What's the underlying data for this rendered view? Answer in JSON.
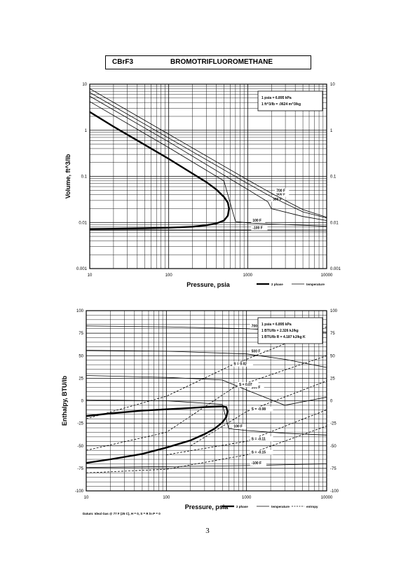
{
  "header": {
    "formula": "CBrF3",
    "name": "BROMOTRIFLUOROMETHANE"
  },
  "page_number": "3",
  "chart_data": [
    {
      "type": "line",
      "xlabel": "Pressure, psia",
      "ylabel": "Volume, ft^3/lb",
      "xscale": "log",
      "yscale": "log",
      "xlim": [
        10,
        10000
      ],
      "ylim": [
        0.001,
        10
      ],
      "grid": true,
      "xticks": [
        "10",
        "100",
        "1000",
        "10000"
      ],
      "yticks": [
        "0.001",
        "0.01",
        "0.1",
        "1",
        "10"
      ],
      "conversion_notes": [
        "1 psia = 6.895 kPa",
        "1 ft^3/lb = .0624 m^3/kg"
      ],
      "legend": {
        "items": [
          "2 phase",
          "temperature"
        ],
        "position": "bottom-right"
      },
      "series": [
        {
          "kind": "2 phase",
          "style": "thick",
          "x": [
            10,
            20,
            50,
            100,
            200,
            300,
            400,
            500,
            560,
            580,
            560,
            500,
            400,
            300,
            200,
            100,
            50,
            20,
            10
          ],
          "y": [
            2.5,
            1.2,
            0.48,
            0.24,
            0.115,
            0.075,
            0.052,
            0.036,
            0.027,
            0.02,
            0.014,
            0.011,
            0.0095,
            0.0087,
            0.0081,
            0.0077,
            0.0075,
            0.0073,
            0.0072
          ]
        },
        {
          "label": "-100 F",
          "style": "thin",
          "x": [
            10,
            100,
            1000,
            10000
          ],
          "y": [
            0.0068,
            0.0068,
            0.0067,
            0.0066
          ]
        },
        {
          "label": "100 F",
          "style": "thin",
          "x": [
            10,
            100,
            500,
            700,
            1000,
            2000,
            5000,
            10000
          ],
          "y": [
            4.2,
            0.42,
            0.08,
            0.0105,
            0.0098,
            0.0092,
            0.0087,
            0.0083
          ]
        },
        {
          "label": "300 F",
          "style": "thin",
          "x": [
            10,
            100,
            1000,
            1800,
            2000,
            5000,
            10000
          ],
          "y": [
            5.5,
            0.56,
            0.052,
            0.028,
            0.02,
            0.0135,
            0.011
          ]
        },
        {
          "label": "500 F",
          "style": "thin",
          "x": [
            10,
            100,
            1000,
            2000,
            5000,
            10000
          ],
          "y": [
            6.6,
            0.68,
            0.07,
            0.036,
            0.017,
            0.0125
          ]
        },
        {
          "label": "700 F",
          "style": "thin",
          "x": [
            10,
            100,
            1000,
            2000,
            5000,
            10000
          ],
          "y": [
            8.0,
            0.82,
            0.084,
            0.043,
            0.019,
            0.013
          ]
        }
      ]
    },
    {
      "type": "line",
      "xlabel": "Pressure, psia",
      "ylabel": "Enthalpy, BTU/lb",
      "xscale": "log",
      "xlim": [
        10,
        10000
      ],
      "ylim": [
        -100,
        100
      ],
      "grid": true,
      "xticks": [
        "10",
        "100",
        "1000",
        "10000"
      ],
      "yticks": [
        "-100",
        "-75",
        "-50",
        "-25",
        "0",
        "25",
        "50",
        "75",
        "100"
      ],
      "conversion_notes": [
        "1 psia = 6.895 kPa",
        "1 BTU/lb = 2.326 kJ/kg",
        "1 BTU/lb R = 4.187 kJ/kg K"
      ],
      "footnote": "Datum: Ideal Gas @ 77 F (25 C), H = 0, S = R ln P = 0",
      "legend": {
        "items": [
          "2 phase",
          "temperature",
          "entropy"
        ],
        "position": "bottom-right"
      },
      "series": [
        {
          "kind": "2 phase",
          "style": "thick",
          "x": [
            10,
            20,
            50,
            100,
            200,
            300,
            400,
            500,
            560,
            580,
            560,
            500,
            400,
            300,
            200,
            100,
            50,
            20,
            10
          ],
          "y": [
            -17,
            -14,
            -11,
            -9.5,
            -8,
            -7,
            -6.5,
            -6.2,
            -7,
            -12,
            -18,
            -24,
            -31,
            -37,
            -44,
            -52,
            -59,
            -65,
            -69
          ]
        },
        {
          "label": "700 F",
          "style": "thin",
          "x": [
            10,
            100,
            1000,
            10000
          ],
          "y": [
            83,
            82,
            80,
            76
          ]
        },
        {
          "label": "500 F",
          "style": "thin",
          "x": [
            10,
            100,
            1000,
            3000,
            10000
          ],
          "y": [
            56,
            55,
            52,
            46,
            37
          ]
        },
        {
          "label": "300 F",
          "style": "thin",
          "x": [
            10,
            100,
            500,
            1000,
            3000,
            10000
          ],
          "y": [
            28,
            26,
            23,
            12,
            -5,
            4
          ]
        },
        {
          "label": "100 F",
          "style": "thin",
          "x": [
            10,
            100,
            500,
            600,
            1000,
            3000,
            10000
          ],
          "y": [
            1,
            0,
            -4,
            -31,
            -33,
            -36,
            -38
          ]
        },
        {
          "label": "-100 F",
          "style": "thin",
          "x": [
            10,
            100,
            1000,
            3000,
            10000
          ],
          "y": [
            -74,
            -73,
            -72,
            -71,
            -70
          ]
        },
        {
          "label": "S = 0.02",
          "style": "dashed",
          "x": [
            10,
            100,
            600,
            10000
          ],
          "y": [
            -20,
            5,
            38,
            82
          ]
        },
        {
          "label": "S = 0.07",
          "style": "dashed",
          "x": [
            10,
            100,
            700,
            10000
          ],
          "y": [
            -55,
            -35,
            15,
            50
          ]
        },
        {
          "label": "S = -0.08",
          "style": "dashed",
          "x": [
            200,
            1000,
            10000
          ],
          "y": [
            -50,
            -12,
            22
          ]
        },
        {
          "label": "S = -0.11",
          "style": "dashed",
          "x": [
            100,
            1000,
            10000
          ],
          "y": [
            -60,
            -45,
            -10
          ]
        },
        {
          "label": "S = -0.15",
          "style": "dashed",
          "x": [
            10,
            100,
            1000,
            10000
          ],
          "y": [
            -80,
            -76,
            -60,
            -28
          ]
        }
      ]
    }
  ]
}
